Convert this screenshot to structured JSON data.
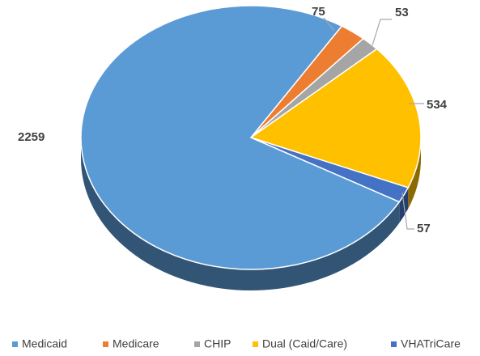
{
  "chart_data": {
    "type": "pie",
    "categories": [
      "Medicaid",
      "Medicare",
      "CHIP",
      "Dual (Caid/Care)",
      "VHATriCare"
    ],
    "values": [
      2259,
      75,
      53,
      534,
      57
    ],
    "colors": [
      "#5b9bd5",
      "#ed7d31",
      "#a5a5a5",
      "#ffc000",
      "#4472c4"
    ],
    "legend": "bottom"
  }
}
